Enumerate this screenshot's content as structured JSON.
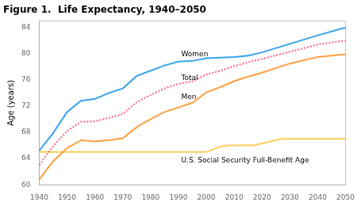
{
  "chart_data": {
    "type": "line",
    "title": "Figure 1.  Life Expectancy, 1940–2050",
    "ylabel": "Age (years)",
    "xlim": [
      1940,
      2050
    ],
    "ylim": [
      60,
      85
    ],
    "xticks": [
      1940,
      1950,
      1960,
      1970,
      1980,
      1990,
      2000,
      2010,
      2020,
      2030,
      2040,
      2050
    ],
    "yticks": [
      60,
      64,
      68,
      72,
      76,
      80,
      84
    ],
    "grid": false,
    "series": [
      {
        "line_style": "solid",
        "x": [
          1940,
          1945,
          1950,
          1955,
          1960,
          1965,
          1970,
          1975,
          1980,
          1985,
          1990,
          1995,
          2000,
          2005,
          2010,
          2015,
          2020,
          2030,
          2040,
          2050
        ],
        "values": [
          65.2,
          67.9,
          71.1,
          72.8,
          73.1,
          74.0,
          74.7,
          76.6,
          77.4,
          78.2,
          78.8,
          78.9,
          79.3,
          79.4,
          79.5,
          79.7,
          80.2,
          81.5,
          82.8,
          84.0
        ]
      },
      {
        "line_style": "dotted",
        "x": [
          1940,
          1945,
          1950,
          1955,
          1960,
          1965,
          1970,
          1975,
          1980,
          1985,
          1990,
          1995,
          2000,
          2005,
          2010,
          2015,
          2020,
          2030,
          2040,
          2050
        ],
        "values": [
          63.0,
          65.9,
          68.2,
          69.6,
          69.7,
          70.2,
          70.8,
          72.6,
          73.7,
          74.7,
          75.4,
          75.8,
          76.8,
          77.4,
          78.1,
          78.7,
          79.2,
          80.3,
          81.4,
          82.0
        ]
      },
      {
        "line_style": "solid",
        "x": [
          1940,
          1945,
          1950,
          1955,
          1960,
          1965,
          1970,
          1975,
          1980,
          1985,
          1990,
          1995,
          2000,
          2005,
          2010,
          2015,
          2020,
          2030,
          2040,
          2050
        ],
        "values": [
          60.8,
          63.6,
          65.6,
          66.8,
          66.6,
          66.8,
          67.1,
          68.8,
          70.0,
          71.1,
          71.8,
          72.5,
          74.1,
          74.9,
          75.8,
          76.5,
          77.1,
          78.5,
          79.5,
          79.9
        ]
      },
      {
        "line_style": "solid",
        "x": [
          1940,
          1983,
          1990,
          2000,
          2002,
          2005,
          2008,
          2009,
          2017,
          2022,
          2027,
          2050
        ],
        "values": [
          65.0,
          65.0,
          65.0,
          65.0,
          65.33,
          65.83,
          66.0,
          66.0,
          66.0,
          66.5,
          67.0,
          67.0
        ]
      }
    ],
    "annotations": [
      {
        "text": "Women",
        "x": 1991,
        "y": 79.3
      },
      {
        "text": "Total",
        "x": 1991,
        "y": 75.7
      },
      {
        "text": "Men",
        "x": 1991,
        "y": 72.8
      },
      {
        "text": "U.S. Social Security Full-Benefit Age",
        "x": 1991,
        "y": 63.2
      }
    ]
  }
}
